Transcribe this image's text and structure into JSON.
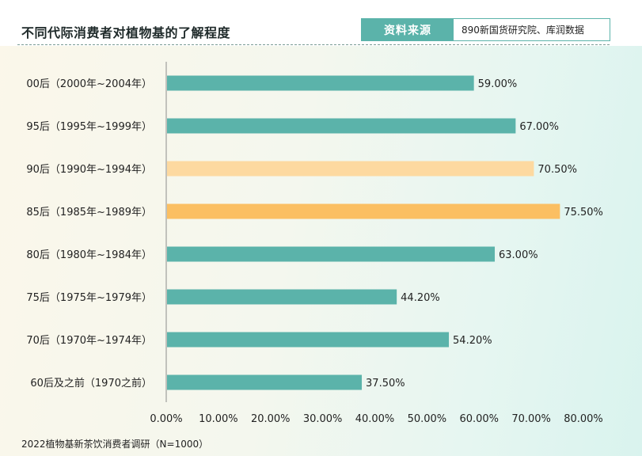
{
  "header": {
    "title": "不同代际消费者对植物基的了解程度",
    "source_label": "资料来源",
    "source_text": "890新国货研究院、库润数据"
  },
  "footnote": "2022植物基新茶饮消费者调研（N=1000）",
  "colors": {
    "teal": "#5bb3aa",
    "light_orange": "#fdd9a0",
    "orange": "#fbbf62",
    "axis": "#8c8c8c"
  },
  "chart_data": {
    "type": "bar",
    "orientation": "horizontal",
    "title": "不同代际消费者对植物基的了解程度",
    "categories": [
      "00后（2000年~2004年）",
      "95后（1995年~1999年）",
      "90后（1990年~1994年）",
      "85后（1985年~1989年）",
      "80后（1980年~1984年）",
      "75后（1975年~1979年）",
      "70后（1970年~1974年）",
      "60后及之前（1970之前）"
    ],
    "values": [
      59.0,
      67.0,
      70.5,
      75.5,
      63.0,
      44.2,
      54.2,
      37.5
    ],
    "value_labels": [
      "59.00%",
      "67.00%",
      "70.50%",
      "75.50%",
      "63.00%",
      "44.20%",
      "54.20%",
      "37.50%"
    ],
    "bar_colors": [
      "#5bb3aa",
      "#5bb3aa",
      "#fdd9a0",
      "#fbbf62",
      "#5bb3aa",
      "#5bb3aa",
      "#5bb3aa",
      "#5bb3aa"
    ],
    "xlim": [
      0,
      80
    ],
    "xticks": [
      0,
      10,
      20,
      30,
      40,
      50,
      60,
      70,
      80
    ],
    "xtick_labels": [
      "0.00%",
      "10.00%",
      "20.00%",
      "30.00%",
      "40.00%",
      "50.00%",
      "60.00%",
      "70.00%",
      "80.00%"
    ],
    "grid": false,
    "legend": "none"
  }
}
